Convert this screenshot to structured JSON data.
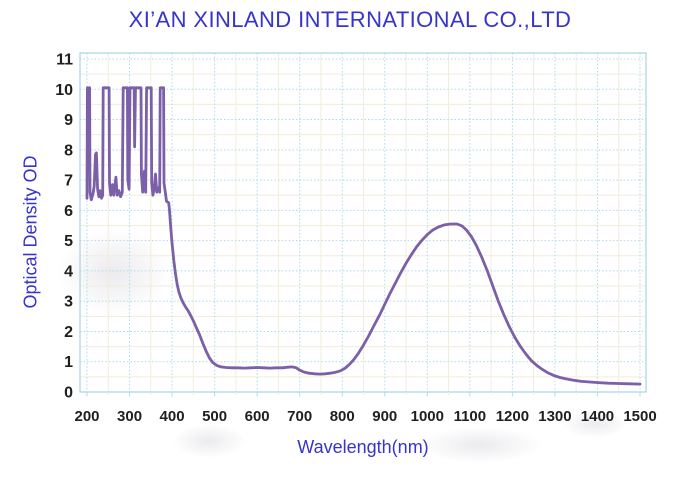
{
  "header": {
    "title": "XI’AN XINLAND INTERNATIONAL CO.,LTD"
  },
  "colors": {
    "heading": "#3733cd",
    "axis_title": "#3733cd",
    "tick_label": "#1f1f1f",
    "grid_major": "#aedcee",
    "grid_minor": "#f2ecda",
    "plot_border": "#a5d4e6",
    "curve": "#7b5fa8",
    "background": "#ffffff"
  },
  "axes": {
    "x": {
      "title": "Wavelength(nm)",
      "min": 200,
      "max": 1500,
      "major_step": 100,
      "minor_step": 50,
      "tick_labels": [
        "200",
        "300",
        "400",
        "500",
        "600",
        "700",
        "800",
        "900",
        "1000",
        "1100",
        "1200",
        "1300",
        "1400",
        "1500"
      ]
    },
    "y": {
      "title": "Optical Density OD",
      "min": 0,
      "max": 11,
      "major_step": 1,
      "minor_step": 0.5,
      "tick_labels": [
        "0",
        "1",
        "2",
        "3",
        "4",
        "5",
        "6",
        "7",
        "8",
        "9",
        "10",
        "11"
      ]
    }
  },
  "chart_data": {
    "type": "line",
    "title": "XI’AN XINLAND INTERNATIONAL CO.,LTD",
    "xlabel": "Wavelength(nm)",
    "ylabel": "Optical Density OD",
    "xlim": [
      200,
      1500
    ],
    "ylim": [
      0,
      11
    ],
    "grid": true,
    "legend": "none",
    "series": [
      {
        "name": "optical-density-curve",
        "color": "#7b5fa8",
        "points": [
          [
            200,
            6.4
          ],
          [
            201,
            10.05
          ],
          [
            206,
            10.05
          ],
          [
            207,
            6.6
          ],
          [
            210,
            6.35
          ],
          [
            214,
            6.55
          ],
          [
            217,
            6.8
          ],
          [
            220,
            7.85
          ],
          [
            222,
            7.9
          ],
          [
            225,
            6.7
          ],
          [
            228,
            6.45
          ],
          [
            231,
            6.65
          ],
          [
            234,
            6.4
          ],
          [
            237,
            6.5
          ],
          [
            238,
            10.05
          ],
          [
            252,
            10.05
          ],
          [
            253,
            6.9
          ],
          [
            256,
            6.5
          ],
          [
            260,
            6.85
          ],
          [
            263,
            6.5
          ],
          [
            268,
            7.1
          ],
          [
            271,
            6.5
          ],
          [
            275,
            6.65
          ],
          [
            279,
            6.45
          ],
          [
            283,
            6.6
          ],
          [
            285,
            10.05
          ],
          [
            295,
            10.05
          ],
          [
            296,
            7.0
          ],
          [
            299,
            6.7
          ],
          [
            301,
            10.05
          ],
          [
            311,
            10.05
          ],
          [
            312,
            8.1
          ],
          [
            314,
            10.05
          ],
          [
            327,
            10.05
          ],
          [
            328,
            7.2
          ],
          [
            331,
            6.6
          ],
          [
            335,
            7.3
          ],
          [
            338,
            6.6
          ],
          [
            340,
            10.05
          ],
          [
            351,
            10.05
          ],
          [
            352,
            6.9
          ],
          [
            355,
            6.5
          ],
          [
            358,
            6.7
          ],
          [
            361,
            7.2
          ],
          [
            364,
            6.6
          ],
          [
            368,
            6.75
          ],
          [
            371,
            6.6
          ],
          [
            372,
            10.05
          ],
          [
            380,
            10.05
          ],
          [
            381,
            6.9
          ],
          [
            384,
            6.6
          ],
          [
            387,
            6.3
          ],
          [
            392,
            6.25
          ],
          [
            394,
            6.0
          ],
          [
            397,
            5.4
          ],
          [
            400,
            4.9
          ],
          [
            404,
            4.35
          ],
          [
            408,
            3.9
          ],
          [
            412,
            3.55
          ],
          [
            416,
            3.3
          ],
          [
            421,
            3.1
          ],
          [
            426,
            2.95
          ],
          [
            432,
            2.8
          ],
          [
            438,
            2.68
          ],
          [
            444,
            2.52
          ],
          [
            451,
            2.32
          ],
          [
            458,
            2.1
          ],
          [
            465,
            1.88
          ],
          [
            472,
            1.62
          ],
          [
            480,
            1.35
          ],
          [
            488,
            1.12
          ],
          [
            496,
            0.97
          ],
          [
            505,
            0.88
          ],
          [
            515,
            0.83
          ],
          [
            527,
            0.81
          ],
          [
            540,
            0.8
          ],
          [
            555,
            0.8
          ],
          [
            570,
            0.79
          ],
          [
            585,
            0.8
          ],
          [
            600,
            0.81
          ],
          [
            615,
            0.8
          ],
          [
            630,
            0.79
          ],
          [
            645,
            0.8
          ],
          [
            660,
            0.8
          ],
          [
            672,
            0.82
          ],
          [
            682,
            0.83
          ],
          [
            692,
            0.8
          ],
          [
            700,
            0.72
          ],
          [
            710,
            0.66
          ],
          [
            722,
            0.62
          ],
          [
            735,
            0.6
          ],
          [
            748,
            0.59
          ],
          [
            760,
            0.6
          ],
          [
            772,
            0.62
          ],
          [
            784,
            0.65
          ],
          [
            796,
            0.7
          ],
          [
            806,
            0.78
          ],
          [
            816,
            0.9
          ],
          [
            826,
            1.05
          ],
          [
            838,
            1.28
          ],
          [
            850,
            1.55
          ],
          [
            862,
            1.85
          ],
          [
            875,
            2.2
          ],
          [
            888,
            2.55
          ],
          [
            900,
            2.9
          ],
          [
            912,
            3.25
          ],
          [
            925,
            3.6
          ],
          [
            938,
            3.95
          ],
          [
            950,
            4.25
          ],
          [
            963,
            4.55
          ],
          [
            975,
            4.8
          ],
          [
            988,
            5.02
          ],
          [
            1000,
            5.2
          ],
          [
            1013,
            5.35
          ],
          [
            1026,
            5.45
          ],
          [
            1040,
            5.52
          ],
          [
            1055,
            5.55
          ],
          [
            1070,
            5.55
          ],
          [
            1082,
            5.48
          ],
          [
            1092,
            5.35
          ],
          [
            1103,
            5.15
          ],
          [
            1115,
            4.85
          ],
          [
            1128,
            4.45
          ],
          [
            1141,
            4.0
          ],
          [
            1154,
            3.5
          ],
          [
            1167,
            3.0
          ],
          [
            1180,
            2.55
          ],
          [
            1193,
            2.15
          ],
          [
            1206,
            1.8
          ],
          [
            1219,
            1.5
          ],
          [
            1232,
            1.25
          ],
          [
            1245,
            1.03
          ],
          [
            1258,
            0.87
          ],
          [
            1271,
            0.74
          ],
          [
            1284,
            0.63
          ],
          [
            1297,
            0.55
          ],
          [
            1312,
            0.48
          ],
          [
            1328,
            0.43
          ],
          [
            1344,
            0.39
          ],
          [
            1362,
            0.35
          ],
          [
            1382,
            0.33
          ],
          [
            1402,
            0.31
          ],
          [
            1425,
            0.29
          ],
          [
            1450,
            0.28
          ],
          [
            1475,
            0.27
          ],
          [
            1500,
            0.26
          ]
        ]
      }
    ]
  }
}
